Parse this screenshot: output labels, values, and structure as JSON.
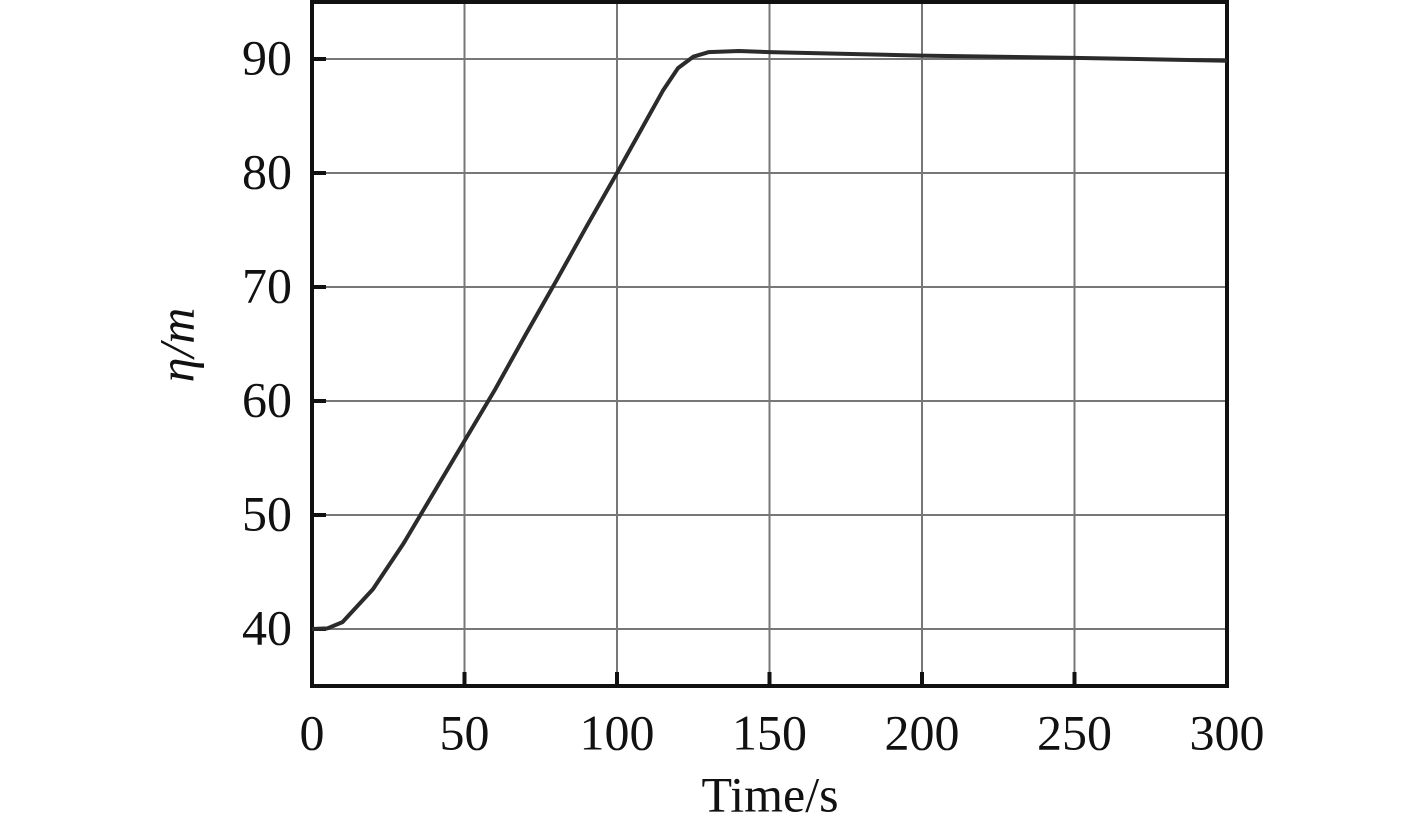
{
  "chart_data": {
    "type": "line",
    "x_label": "Time/s",
    "y_label": "η/m",
    "x": [
      0,
      5,
      10,
      20,
      30,
      40,
      50,
      60,
      70,
      80,
      90,
      100,
      110,
      115,
      120,
      125,
      130,
      140,
      150,
      200,
      250,
      300
    ],
    "series": [
      {
        "color": "#2b2b2b",
        "values": [
          40,
          40.05,
          40.6,
          43.5,
          47.5,
          52,
          56.5,
          61,
          65.8,
          70.5,
          75.3,
          80,
          84.8,
          87.2,
          89.2,
          90.2,
          90.6,
          90.7,
          90.6,
          90.3,
          90.1,
          89.85
        ]
      }
    ],
    "xlim": [
      0,
      300
    ],
    "xticks": [
      0,
      50,
      100,
      150,
      200,
      250,
      300
    ],
    "ylim": [
      35,
      95
    ],
    "yticks": [
      40,
      50,
      60,
      70,
      80,
      90
    ],
    "grid": true
  }
}
